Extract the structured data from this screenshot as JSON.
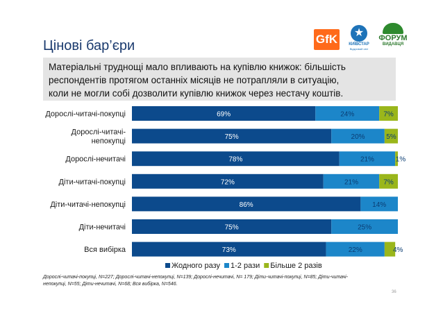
{
  "slide": {
    "title": "Цінові бар’єри",
    "callout_lines": [
      "Матеріальні труднощі мало впливають на купівлю книжок: більшість",
      "респондентів протягом останніх місяців  не потрапляли в ситуацію,",
      "коли не могли собі дозволити купівлю книжок через нестачу коштів."
    ],
    "footnote_lines": [
      "Дорослі-читачі-покупці, N=227; Дорослі-читачі-непокупці, N=139; Дорослі-нечитачі, N= 179; Діти-читачі-покупці, N=85; Діти-читачі-",
      "непокупці, N=55; Діти-нечитачі, N=68; Вся вибірка, N=546."
    ],
    "page_number": "36"
  },
  "logos": {
    "gfk": "GfK",
    "kyivstar": "КИЇВСТАР",
    "kyivstar_sub": "Відкривай світ",
    "forum": "ФОРУМ",
    "forum_sub": "ВИДАВЦЯ"
  },
  "chart_data": {
    "type": "bar",
    "orientation": "horizontal",
    "stacked": true,
    "categories": [
      [
        "Дорослі-читачі-покупці"
      ],
      [
        "Дорослі-читачі-",
        "непокупці"
      ],
      [
        "Дорослі-нечитачі"
      ],
      [
        "Діти-читачі-покупці"
      ],
      [
        "Діти-читачі-непокупці"
      ],
      [
        "Діти-нечитачі"
      ],
      [
        "Вся вибірка"
      ]
    ],
    "series": [
      {
        "name": "Жодного разу",
        "color": "#0c4a8c",
        "label_color": "#ffffff",
        "values": [
          69,
          75,
          78,
          72,
          86,
          75,
          73
        ]
      },
      {
        "name": "1-2 рази",
        "color": "#1c86c9",
        "label_color": "#0b3d73",
        "values": [
          24,
          20,
          21,
          21,
          14,
          25,
          22
        ]
      },
      {
        "name": "Більше 2 разів",
        "color": "#9ab61b",
        "label_color": "#0b3d73",
        "values": [
          7,
          5,
          1,
          7,
          0,
          0,
          4
        ]
      }
    ],
    "data_labels": [
      [
        "69%",
        "24%",
        "7%"
      ],
      [
        "75%",
        "20%",
        "5%"
      ],
      [
        "78%",
        "21%",
        "1%"
      ],
      [
        "72%",
        "21%",
        "7%"
      ],
      [
        "86%",
        "14%",
        ""
      ],
      [
        "75%",
        "25%",
        ""
      ],
      [
        "73%",
        "22%",
        "4%"
      ]
    ],
    "xlim": [
      0,
      100
    ],
    "legend_position": "bottom",
    "title": "",
    "xlabel": "",
    "ylabel": ""
  }
}
